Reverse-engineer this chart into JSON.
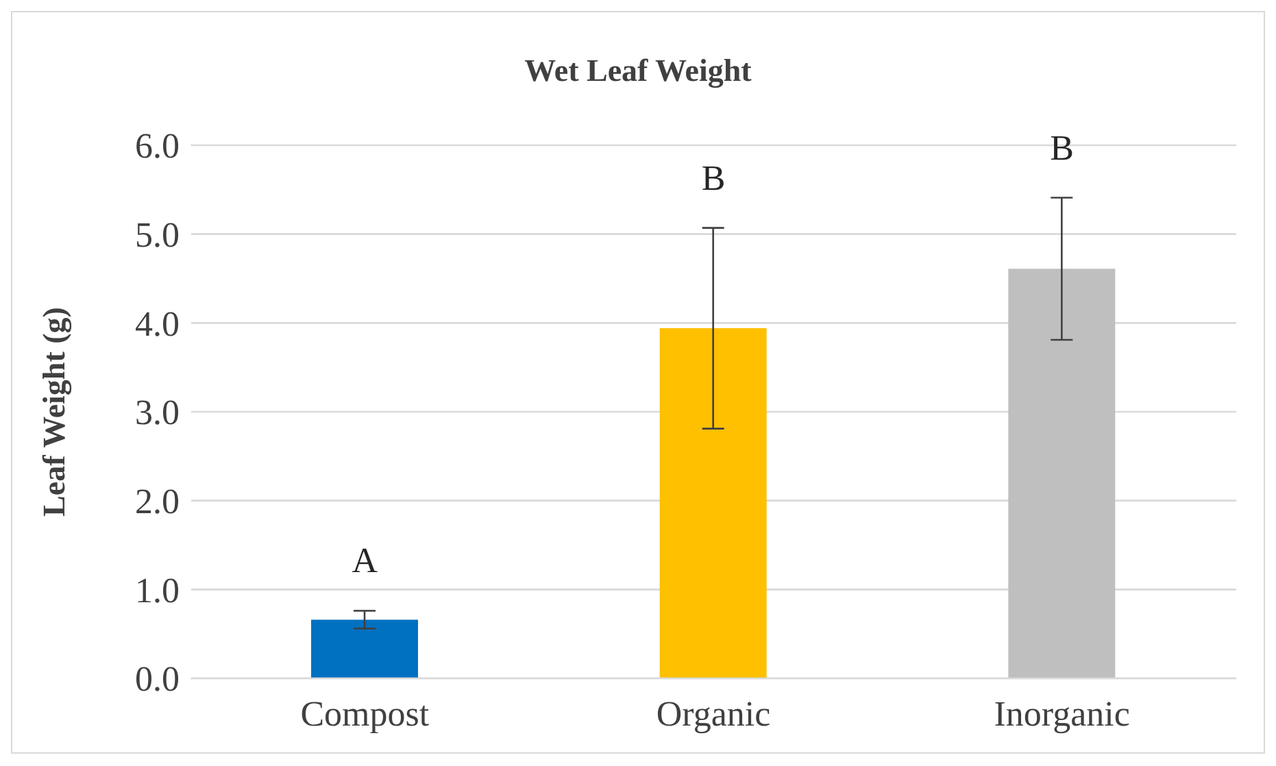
{
  "chart_data": {
    "type": "bar",
    "title": "Wet Leaf Weight",
    "ylabel": "Leaf Weight (g)",
    "categories": [
      "Compost",
      "Organic",
      "Inorganic"
    ],
    "values": [
      0.66,
      3.94,
      4.61
    ],
    "colors": [
      "#0070c0",
      "#ffc000",
      "#bfbfbf"
    ],
    "errors": [
      0.1,
      1.13,
      0.8
    ],
    "ylim": [
      0,
      6
    ],
    "yticks": [
      {
        "value": 0,
        "label": "0.0"
      },
      {
        "value": 1,
        "label": "1.0"
      },
      {
        "value": 2,
        "label": "2.0"
      },
      {
        "value": 3,
        "label": "3.0"
      },
      {
        "value": 4,
        "label": "4.0"
      },
      {
        "value": 5,
        "label": "5.0"
      },
      {
        "value": 6,
        "label": "6.0"
      }
    ],
    "grid": "y",
    "annotations": [
      "A",
      "B",
      "B"
    ]
  }
}
